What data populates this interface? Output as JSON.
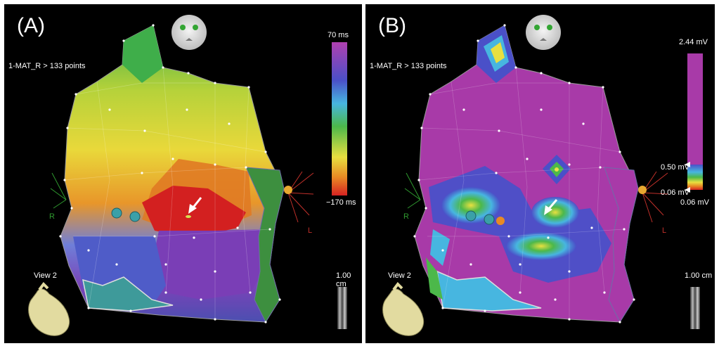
{
  "panels": [
    {
      "label": "(A)",
      "map_name": "1-MAT_R > 133 points",
      "legend_top": "70 ms",
      "legend_bottom": "−170 ms",
      "view_label": "View 2",
      "scale_label": "1.00 cm",
      "right_marker": "R",
      "left_marker": "L"
    },
    {
      "label": "(B)",
      "map_name": "1-MAT_R > 133 points",
      "legend_top": "2.44 mV",
      "legend_mid": "0.50 mV",
      "legend_low": "0.06 mV",
      "legend_bottom": "0.06 mV",
      "view_label": "View 2",
      "scale_label": "1.00 cm",
      "right_marker": "R",
      "left_marker": "L"
    }
  ],
  "colors": {
    "background": "#000000",
    "divider": "#ffffff",
    "late_activation": "#dd2222",
    "early_activation": "#8a3fb0",
    "high_voltage": "#a83aa8",
    "marker_R": "#2f9a2f",
    "marker_L": "#c0302a"
  },
  "icons": [
    "head-orientation-icon",
    "heart-orientation-icon",
    "arrow-icon",
    "ablation-tag-icon"
  ]
}
